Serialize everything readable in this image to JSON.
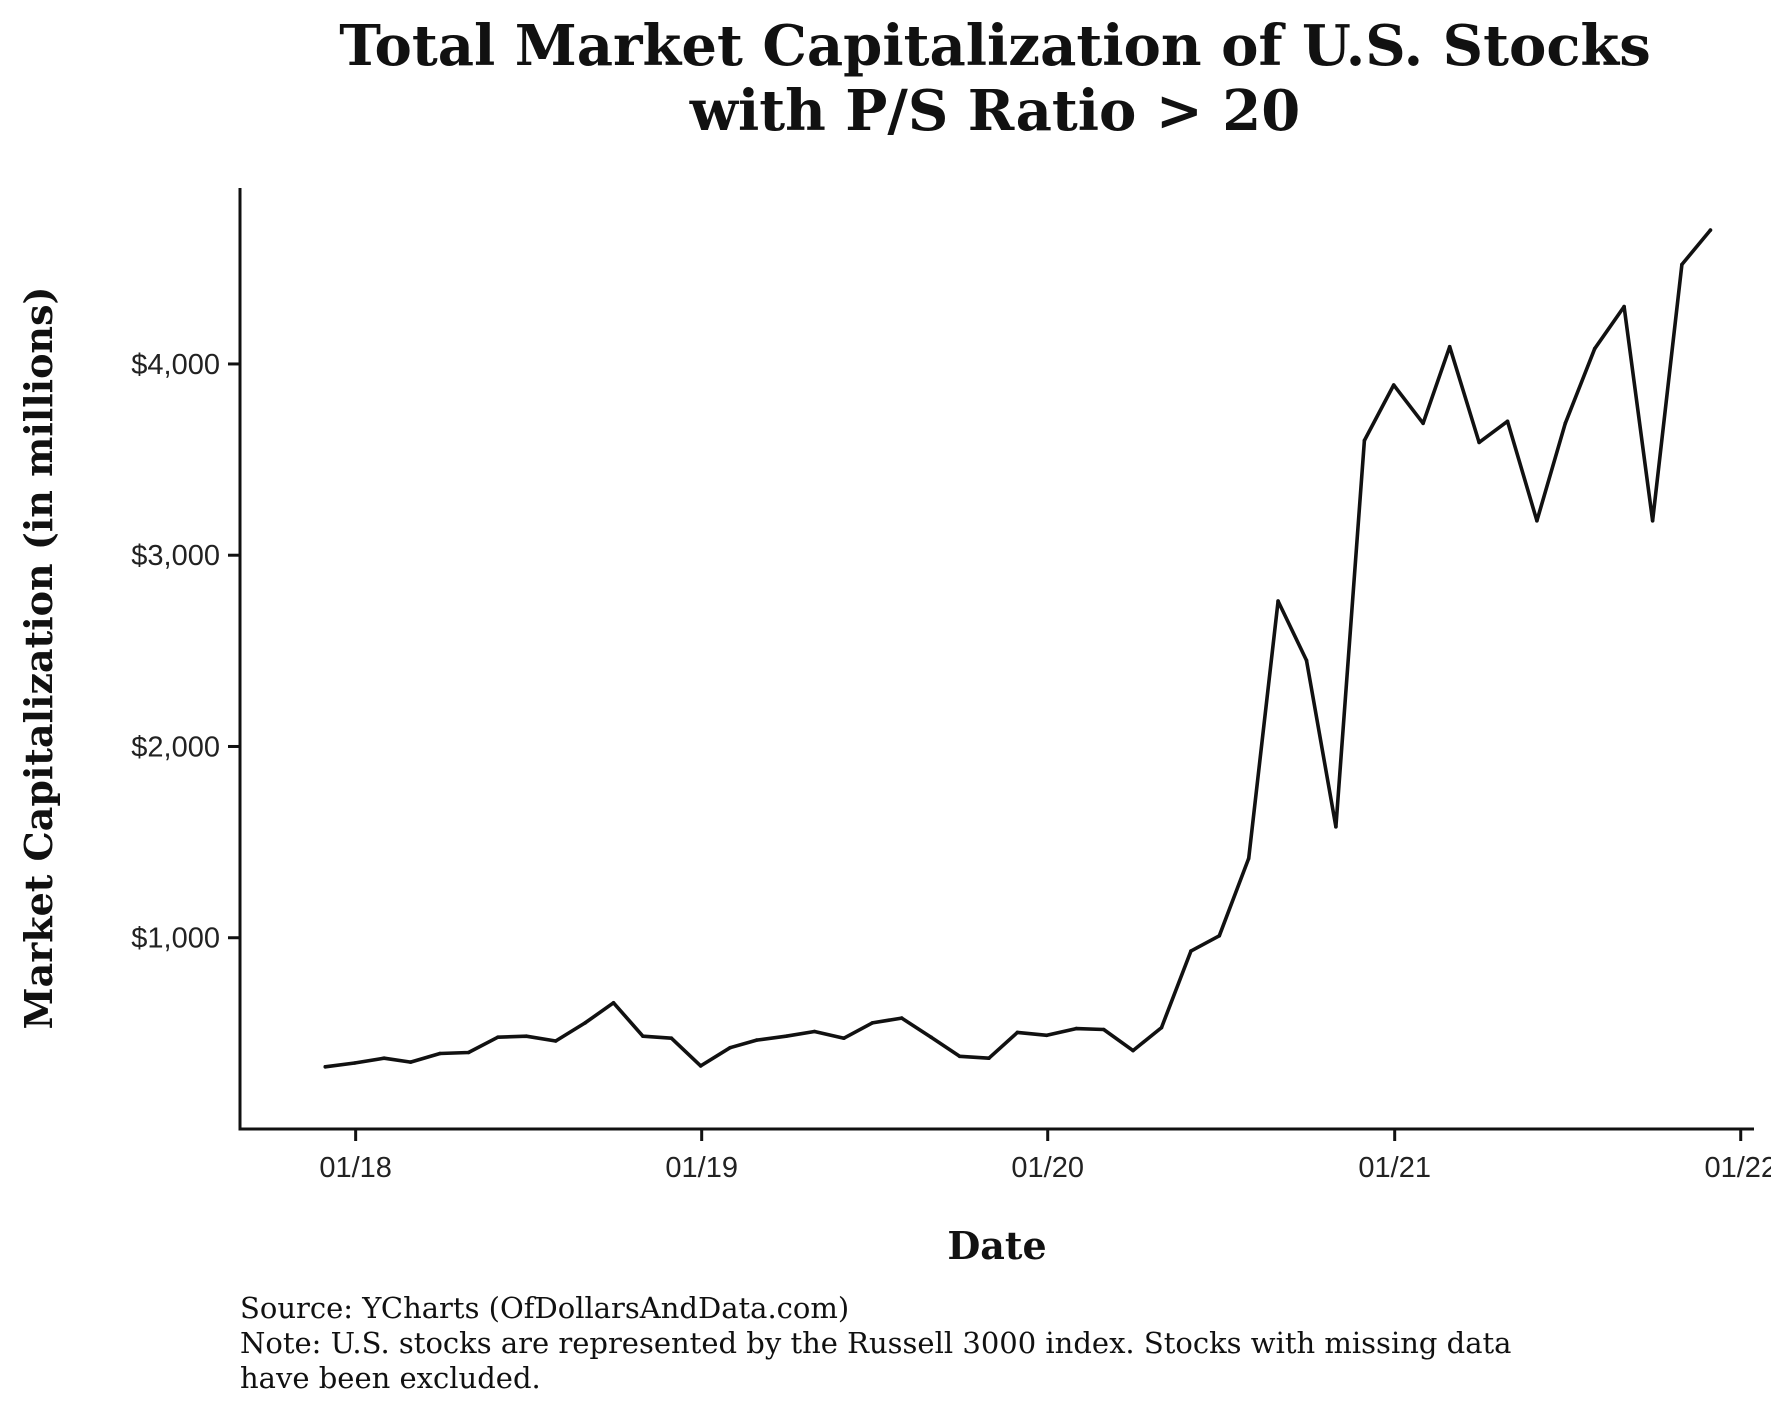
{
  "chart_data": {
    "type": "line",
    "title": [
      "Total Market Capitalization of U.S. Stocks",
      "with P/S Ratio > 20"
    ],
    "xlabel": "Date",
    "ylabel": "Market Capitalization (in millions)",
    "x_ticks": [
      {
        "value": "2018-01-01",
        "label": "01/18"
      },
      {
        "value": "2019-01-01",
        "label": "01/19"
      },
      {
        "value": "2020-01-01",
        "label": "01/20"
      },
      {
        "value": "2021-01-01",
        "label": "01/21"
      },
      {
        "value": "2022-01-01",
        "label": "01/22"
      }
    ],
    "y_ticks": [
      {
        "value": 1000,
        "label": "$1,000"
      },
      {
        "value": 2000,
        "label": "$2,000"
      },
      {
        "value": 3000,
        "label": "$3,000"
      },
      {
        "value": 4000,
        "label": "$4,000"
      }
    ],
    "xlim": [
      "2017-09-01",
      "2022-01-15"
    ],
    "ylim": [
      0,
      4920
    ],
    "grid": false,
    "legend": "none",
    "series": [
      {
        "color": "#111111",
        "points": [
          {
            "x": "2017-11-30",
            "y": 325
          },
          {
            "x": "2017-12-31",
            "y": 345
          },
          {
            "x": "2018-01-31",
            "y": 370
          },
          {
            "x": "2018-02-28",
            "y": 350
          },
          {
            "x": "2018-03-31",
            "y": 395
          },
          {
            "x": "2018-04-30",
            "y": 400
          },
          {
            "x": "2018-05-31",
            "y": 480
          },
          {
            "x": "2018-06-30",
            "y": 485
          },
          {
            "x": "2018-07-31",
            "y": 460
          },
          {
            "x": "2018-08-31",
            "y": 555
          },
          {
            "x": "2018-09-30",
            "y": 660
          },
          {
            "x": "2018-10-31",
            "y": 485
          },
          {
            "x": "2018-11-30",
            "y": 475
          },
          {
            "x": "2018-12-31",
            "y": 330
          },
          {
            "x": "2019-01-31",
            "y": 425
          },
          {
            "x": "2019-02-28",
            "y": 465
          },
          {
            "x": "2019-03-31",
            "y": 485
          },
          {
            "x": "2019-04-30",
            "y": 510
          },
          {
            "x": "2019-05-31",
            "y": 475
          },
          {
            "x": "2019-06-30",
            "y": 555
          },
          {
            "x": "2019-07-31",
            "y": 580
          },
          {
            "x": "2019-08-31",
            "y": 480
          },
          {
            "x": "2019-09-30",
            "y": 380
          },
          {
            "x": "2019-10-31",
            "y": 370
          },
          {
            "x": "2019-11-30",
            "y": 505
          },
          {
            "x": "2019-12-31",
            "y": 490
          },
          {
            "x": "2020-01-31",
            "y": 525
          },
          {
            "x": "2020-02-29",
            "y": 520
          },
          {
            "x": "2020-03-31",
            "y": 410
          },
          {
            "x": "2020-04-30",
            "y": 530
          },
          {
            "x": "2020-05-31",
            "y": 930
          },
          {
            "x": "2020-06-30",
            "y": 1010
          },
          {
            "x": "2020-07-31",
            "y": 1415
          },
          {
            "x": "2020-08-31",
            "y": 2760
          },
          {
            "x": "2020-09-30",
            "y": 2450
          },
          {
            "x": "2020-10-31",
            "y": 1580
          },
          {
            "x": "2020-11-30",
            "y": 3600
          },
          {
            "x": "2020-12-31",
            "y": 3890
          },
          {
            "x": "2021-01-31",
            "y": 3690
          },
          {
            "x": "2021-02-28",
            "y": 4090
          },
          {
            "x": "2021-03-31",
            "y": 3590
          },
          {
            "x": "2021-04-30",
            "y": 3700
          },
          {
            "x": "2021-05-31",
            "y": 3180
          },
          {
            "x": "2021-06-30",
            "y": 3690
          },
          {
            "x": "2021-07-31",
            "y": 4080
          },
          {
            "x": "2021-08-31",
            "y": 4300
          },
          {
            "x": "2021-09-30",
            "y": 3180
          },
          {
            "x": "2021-10-31",
            "y": 4520
          },
          {
            "x": "2021-11-30",
            "y": 4700
          }
        ]
      }
    ]
  },
  "footnote": {
    "source": "Source: YCharts (OfDollarsAndData.com)",
    "note_line1": "Note: U.S. stocks are represented by the Russell 3000 index. Stocks with missing data",
    "note_line2": "have been excluded."
  }
}
